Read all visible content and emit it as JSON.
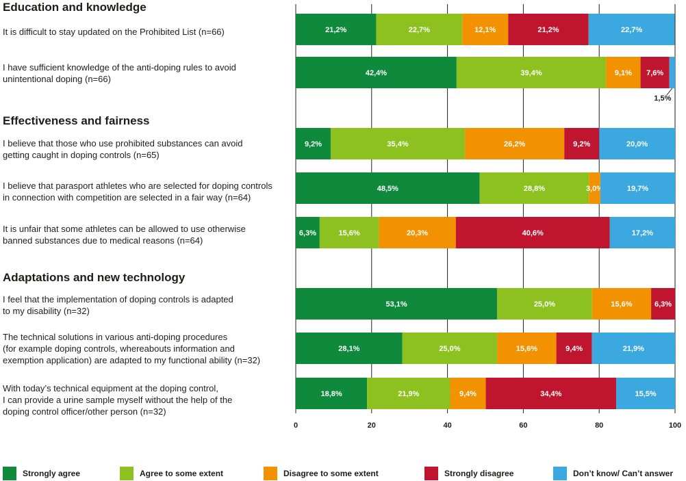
{
  "chart_data": {
    "type": "bar",
    "orientation": "horizontal",
    "stacked": true,
    "xlim": [
      0,
      100
    ],
    "x_ticks": [
      "0",
      "20",
      "40",
      "60",
      "80",
      "100"
    ],
    "grid": true,
    "legend_position": "bottom",
    "sections": [
      {
        "title": "Education and knowledge"
      },
      {
        "title": "Effectiveness and fairness"
      },
      {
        "title": "Adaptations and new technology"
      }
    ],
    "series": [
      {
        "name": "Strongly agree",
        "color": "#0f8a3c"
      },
      {
        "name": "Agree to some extent",
        "color": "#8dc11f"
      },
      {
        "name": "Disagree to some extent",
        "color": "#f39200"
      },
      {
        "name": "Strongly disagree",
        "color": "#c0152f"
      },
      {
        "name": "Don’t know/ Can’t answer",
        "color": "#3ba9e0"
      }
    ],
    "questions": [
      {
        "label": "It is difficult to stay updated on the Prohibited List (n=66)",
        "values": [
          21.2,
          22.7,
          12.1,
          21.2,
          22.7
        ],
        "data_labels": [
          "21,2%",
          "22,7%",
          "12,1%",
          "21,2%",
          "22,7%"
        ]
      },
      {
        "label": "I have sufficient knowledge of the anti-doping rules to avoid\nunintentional doping (n=66)",
        "values": [
          42.4,
          39.4,
          9.1,
          7.6,
          1.5
        ],
        "data_labels": [
          "42,4%",
          "39,4%",
          "9,1%",
          "7,6%",
          "1,5%"
        ]
      },
      {
        "label": "I believe that those who use prohibited substances can avoid\ngetting caught in doping controls (n=65)",
        "values": [
          9.2,
          35.4,
          26.2,
          9.2,
          20.0
        ],
        "data_labels": [
          "9,2%",
          "35,4%",
          "26,2%",
          "9,2%",
          "20,0%"
        ]
      },
      {
        "label": "I believe that parasport athletes who are selected for doping controls\nin connection with competition are selected in a  fair way (n=64)",
        "values": [
          48.5,
          28.8,
          3.0,
          0.0,
          19.7
        ],
        "data_labels": [
          "48,5%",
          "28,8%",
          "3,0%",
          "",
          "19,7%"
        ]
      },
      {
        "label": "It is unfair that some athletes can be allowed to use otherwise\nbanned substances due to medical reasons (n=64)",
        "values": [
          6.3,
          15.6,
          20.3,
          40.6,
          17.2
        ],
        "data_labels": [
          "6,3%",
          "15,6%",
          "20,3%",
          "40,6%",
          "17,2%"
        ]
      },
      {
        "label": "I feel that the implementation of doping controls is adapted\nto my disability (n=32)",
        "values": [
          53.1,
          25.0,
          15.6,
          6.3,
          0.0
        ],
        "data_labels": [
          "53,1%",
          "25,0%",
          "15,6%",
          "6,3%",
          ""
        ]
      },
      {
        "label": "The technical solutions in various anti-doping procedures\n(for example doping controls, whereabouts information and\nexemption application) are adapted to my functional ability (n=32)",
        "values": [
          28.1,
          25.0,
          15.6,
          9.4,
          21.9
        ],
        "data_labels": [
          "28,1%",
          "25,0%",
          "15,6%",
          "9,4%",
          "21,9%"
        ]
      },
      {
        "label": "With today’s technical equipment at the doping control,\nI can provide a urine sample myself without the help of the\ndoping control officer/other person (n=32)",
        "values": [
          18.8,
          21.9,
          9.4,
          34.4,
          15.5
        ],
        "data_labels": [
          "18,8%",
          "21,9%",
          "9,4%",
          "34,4%",
          "15,5%"
        ]
      }
    ]
  }
}
